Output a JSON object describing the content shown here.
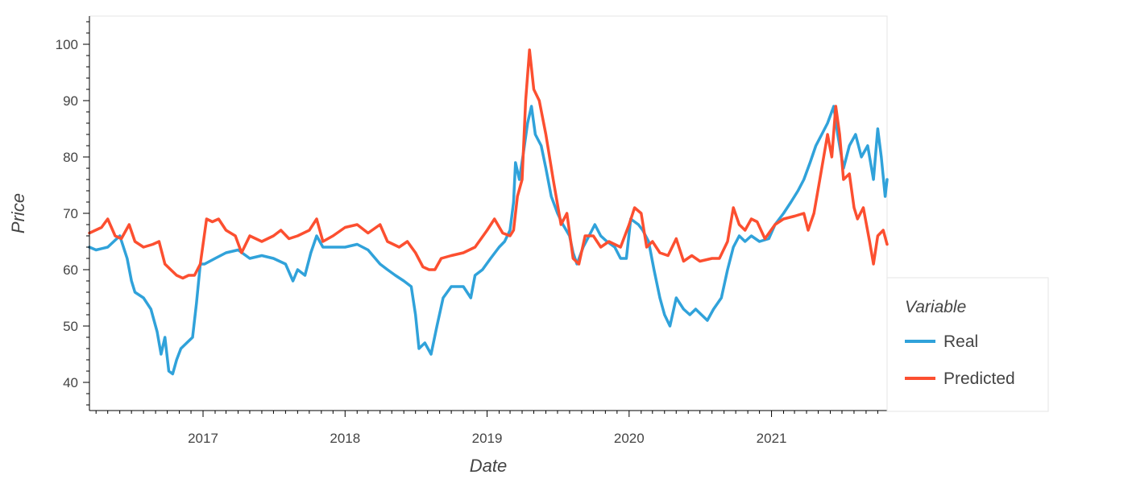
{
  "chart_data": {
    "type": "line",
    "xlabel": "Date",
    "ylabel": "Price",
    "xlim": [
      "2016-03-15",
      "2021-10-25"
    ],
    "ylim": [
      35,
      105
    ],
    "x_ticks": [
      "2017",
      "2018",
      "2019",
      "2020",
      "2021"
    ],
    "y_ticks": [
      40,
      50,
      60,
      70,
      80,
      90,
      100
    ],
    "grid": false,
    "legend": {
      "title": "Variable",
      "placement": "right-bottom"
    },
    "series": [
      {
        "name": "Real",
        "color": "#30a2da",
        "points": [
          [
            "2016-03-15",
            64
          ],
          [
            "2016-04-01",
            63.5
          ],
          [
            "2016-05-01",
            64
          ],
          [
            "2016-06-01",
            66
          ],
          [
            "2016-06-20",
            62
          ],
          [
            "2016-07-01",
            58
          ],
          [
            "2016-07-10",
            56
          ],
          [
            "2016-08-01",
            55
          ],
          [
            "2016-08-20",
            53
          ],
          [
            "2016-09-05",
            49
          ],
          [
            "2016-09-15",
            45
          ],
          [
            "2016-09-25",
            48
          ],
          [
            "2016-10-05",
            42
          ],
          [
            "2016-10-15",
            41.5
          ],
          [
            "2016-10-25",
            44
          ],
          [
            "2016-11-05",
            46
          ],
          [
            "2016-11-20",
            47
          ],
          [
            "2016-12-05",
            48
          ],
          [
            "2016-12-15",
            54
          ],
          [
            "2016-12-25",
            61
          ],
          [
            "2017-01-05",
            61
          ],
          [
            "2017-02-01",
            62
          ],
          [
            "2017-03-01",
            63
          ],
          [
            "2017-04-01",
            63.5
          ],
          [
            "2017-05-01",
            62
          ],
          [
            "2017-06-01",
            62.5
          ],
          [
            "2017-07-01",
            62
          ],
          [
            "2017-08-01",
            61
          ],
          [
            "2017-08-20",
            58
          ],
          [
            "2017-09-01",
            60
          ],
          [
            "2017-09-20",
            59
          ],
          [
            "2017-10-05",
            63
          ],
          [
            "2017-10-20",
            66
          ],
          [
            "2017-11-05",
            64
          ],
          [
            "2017-12-01",
            64
          ],
          [
            "2018-01-01",
            64
          ],
          [
            "2018-02-01",
            64.5
          ],
          [
            "2018-03-01",
            63.5
          ],
          [
            "2018-04-01",
            61
          ],
          [
            "2018-04-20",
            60
          ],
          [
            "2018-05-10",
            59
          ],
          [
            "2018-06-01",
            58
          ],
          [
            "2018-06-20",
            57
          ],
          [
            "2018-07-01",
            52
          ],
          [
            "2018-07-10",
            46
          ],
          [
            "2018-07-25",
            47
          ],
          [
            "2018-08-10",
            45
          ],
          [
            "2018-08-25",
            50
          ],
          [
            "2018-09-10",
            55
          ],
          [
            "2018-10-01",
            57
          ],
          [
            "2018-11-01",
            57
          ],
          [
            "2018-11-20",
            55
          ],
          [
            "2018-12-01",
            59
          ],
          [
            "2018-12-20",
            60
          ],
          [
            "2019-01-10",
            62
          ],
          [
            "2019-02-01",
            64
          ],
          [
            "2019-02-15",
            65
          ],
          [
            "2019-03-01",
            67
          ],
          [
            "2019-03-10",
            72
          ],
          [
            "2019-03-15",
            79
          ],
          [
            "2019-03-25",
            76
          ],
          [
            "2019-04-05",
            81
          ],
          [
            "2019-04-15",
            86
          ],
          [
            "2019-04-25",
            89
          ],
          [
            "2019-05-05",
            84
          ],
          [
            "2019-05-20",
            82
          ],
          [
            "2019-06-01",
            78
          ],
          [
            "2019-06-15",
            73
          ],
          [
            "2019-07-01",
            70
          ],
          [
            "2019-07-15",
            68
          ],
          [
            "2019-08-01",
            66
          ],
          [
            "2019-08-10",
            63
          ],
          [
            "2019-08-20",
            61
          ],
          [
            "2019-09-05",
            64
          ],
          [
            "2019-09-20",
            66
          ],
          [
            "2019-10-05",
            68
          ],
          [
            "2019-10-20",
            66
          ],
          [
            "2019-11-05",
            65
          ],
          [
            "2019-11-25",
            64
          ],
          [
            "2019-12-10",
            62
          ],
          [
            "2019-12-25",
            62
          ],
          [
            "2020-01-05",
            69
          ],
          [
            "2020-01-25",
            68
          ],
          [
            "2020-02-05",
            67
          ],
          [
            "2020-02-20",
            65
          ],
          [
            "2020-03-05",
            60
          ],
          [
            "2020-03-20",
            55
          ],
          [
            "2020-04-01",
            52
          ],
          [
            "2020-04-15",
            50
          ],
          [
            "2020-05-01",
            55
          ],
          [
            "2020-05-20",
            53
          ],
          [
            "2020-06-05",
            52
          ],
          [
            "2020-06-20",
            53
          ],
          [
            "2020-07-05",
            52
          ],
          [
            "2020-07-20",
            51
          ],
          [
            "2020-08-05",
            53
          ],
          [
            "2020-08-25",
            55
          ],
          [
            "2020-09-10",
            60
          ],
          [
            "2020-09-25",
            64
          ],
          [
            "2020-10-10",
            66
          ],
          [
            "2020-10-25",
            65
          ],
          [
            "2020-11-10",
            66
          ],
          [
            "2020-12-01",
            65
          ],
          [
            "2020-12-25",
            65.5
          ],
          [
            "2021-01-10",
            68
          ],
          [
            "2021-02-01",
            70
          ],
          [
            "2021-02-20",
            72
          ],
          [
            "2021-03-10",
            74
          ],
          [
            "2021-03-25",
            76
          ],
          [
            "2021-04-10",
            79
          ],
          [
            "2021-04-25",
            82
          ],
          [
            "2021-05-10",
            84
          ],
          [
            "2021-05-25",
            86
          ],
          [
            "2021-06-10",
            89
          ],
          [
            "2021-06-20",
            84
          ],
          [
            "2021-07-05",
            78
          ],
          [
            "2021-07-20",
            82
          ],
          [
            "2021-08-05",
            84
          ],
          [
            "2021-08-20",
            80
          ],
          [
            "2021-09-05",
            82
          ],
          [
            "2021-09-20",
            76
          ],
          [
            "2021-10-01",
            85
          ],
          [
            "2021-10-10",
            80
          ],
          [
            "2021-10-20",
            73
          ],
          [
            "2021-10-25",
            76
          ]
        ]
      },
      {
        "name": "Predicted",
        "color": "#fc4f30",
        "points": [
          [
            "2016-03-15",
            66.5
          ],
          [
            "2016-04-15",
            67.5
          ],
          [
            "2016-05-01",
            69
          ],
          [
            "2016-05-20",
            66
          ],
          [
            "2016-06-05",
            65.5
          ],
          [
            "2016-06-25",
            68
          ],
          [
            "2016-07-10",
            65
          ],
          [
            "2016-08-01",
            64
          ],
          [
            "2016-08-25",
            64.5
          ],
          [
            "2016-09-10",
            65
          ],
          [
            "2016-09-25",
            61
          ],
          [
            "2016-10-10",
            60
          ],
          [
            "2016-10-25",
            59
          ],
          [
            "2016-11-10",
            58.5
          ],
          [
            "2016-11-25",
            59
          ],
          [
            "2016-12-10",
            59
          ],
          [
            "2016-12-25",
            61
          ],
          [
            "2017-01-10",
            69
          ],
          [
            "2017-01-25",
            68.5
          ],
          [
            "2017-02-10",
            69
          ],
          [
            "2017-03-01",
            67
          ],
          [
            "2017-03-25",
            66
          ],
          [
            "2017-04-10",
            63
          ],
          [
            "2017-05-01",
            66
          ],
          [
            "2017-06-01",
            65
          ],
          [
            "2017-07-01",
            66
          ],
          [
            "2017-07-20",
            67
          ],
          [
            "2017-08-10",
            65.5
          ],
          [
            "2017-09-01",
            66
          ],
          [
            "2017-10-01",
            67
          ],
          [
            "2017-10-20",
            69
          ],
          [
            "2017-11-05",
            65
          ],
          [
            "2017-12-01",
            66
          ],
          [
            "2018-01-01",
            67.5
          ],
          [
            "2018-02-01",
            68
          ],
          [
            "2018-03-01",
            66.5
          ],
          [
            "2018-04-01",
            68
          ],
          [
            "2018-04-20",
            65
          ],
          [
            "2018-05-20",
            64
          ],
          [
            "2018-06-10",
            65
          ],
          [
            "2018-07-01",
            63
          ],
          [
            "2018-07-20",
            60.5
          ],
          [
            "2018-08-05",
            60
          ],
          [
            "2018-08-20",
            60
          ],
          [
            "2018-09-05",
            62
          ],
          [
            "2018-10-01",
            62.5
          ],
          [
            "2018-11-01",
            63
          ],
          [
            "2018-12-01",
            64
          ],
          [
            "2019-01-01",
            67
          ],
          [
            "2019-01-20",
            69
          ],
          [
            "2019-02-10",
            66.5
          ],
          [
            "2019-03-01",
            66
          ],
          [
            "2019-03-10",
            67
          ],
          [
            "2019-03-20",
            73
          ],
          [
            "2019-04-01",
            76
          ],
          [
            "2019-04-10",
            90
          ],
          [
            "2019-04-20",
            99
          ],
          [
            "2019-05-01",
            92
          ],
          [
            "2019-05-15",
            90
          ],
          [
            "2019-06-01",
            84
          ],
          [
            "2019-06-20",
            76
          ],
          [
            "2019-07-10",
            68
          ],
          [
            "2019-07-25",
            70
          ],
          [
            "2019-08-10",
            62
          ],
          [
            "2019-08-25",
            61
          ],
          [
            "2019-09-10",
            66
          ],
          [
            "2019-10-01",
            66
          ],
          [
            "2019-10-20",
            64
          ],
          [
            "2019-11-10",
            65
          ],
          [
            "2019-12-10",
            64
          ],
          [
            "2020-01-01",
            68
          ],
          [
            "2020-01-15",
            71
          ],
          [
            "2020-02-01",
            70
          ],
          [
            "2020-02-15",
            64
          ],
          [
            "2020-03-01",
            65
          ],
          [
            "2020-03-20",
            63
          ],
          [
            "2020-04-10",
            62.5
          ],
          [
            "2020-05-01",
            65.5
          ],
          [
            "2020-05-20",
            61.5
          ],
          [
            "2020-06-10",
            62.5
          ],
          [
            "2020-07-01",
            61.5
          ],
          [
            "2020-08-01",
            62
          ],
          [
            "2020-08-20",
            62
          ],
          [
            "2020-09-10",
            65
          ],
          [
            "2020-09-25",
            71
          ],
          [
            "2020-10-10",
            68
          ],
          [
            "2020-10-25",
            67
          ],
          [
            "2020-11-10",
            69
          ],
          [
            "2020-11-25",
            68.5
          ],
          [
            "2020-12-15",
            65.5
          ],
          [
            "2021-01-10",
            68
          ],
          [
            "2021-02-01",
            69
          ],
          [
            "2021-03-01",
            69.5
          ],
          [
            "2021-03-25",
            70
          ],
          [
            "2021-04-05",
            67
          ],
          [
            "2021-04-20",
            70
          ],
          [
            "2021-05-05",
            76
          ],
          [
            "2021-05-15",
            80
          ],
          [
            "2021-05-25",
            84
          ],
          [
            "2021-06-05",
            80
          ],
          [
            "2021-06-15",
            89
          ],
          [
            "2021-06-25",
            84
          ],
          [
            "2021-07-05",
            76
          ],
          [
            "2021-07-20",
            77
          ],
          [
            "2021-08-01",
            71
          ],
          [
            "2021-08-10",
            69
          ],
          [
            "2021-08-25",
            71
          ],
          [
            "2021-09-10",
            65
          ],
          [
            "2021-09-20",
            61
          ],
          [
            "2021-10-01",
            66
          ],
          [
            "2021-10-15",
            67
          ],
          [
            "2021-10-25",
            64.5
          ]
        ]
      }
    ]
  }
}
